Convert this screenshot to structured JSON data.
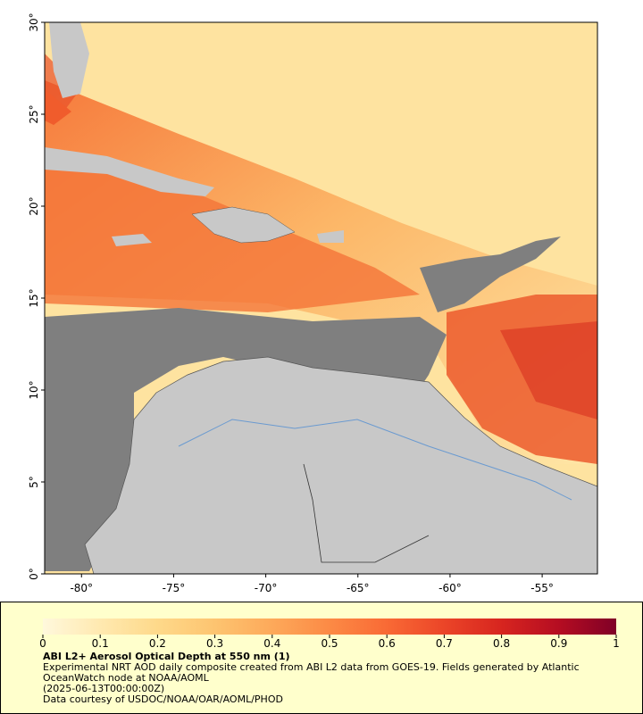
{
  "map": {
    "xlim": [
      -82,
      -52
    ],
    "ylim": [
      0,
      30
    ],
    "xticks": [
      {
        "value": -80,
        "label": "-80°"
      },
      {
        "value": -75,
        "label": "-75°"
      },
      {
        "value": -70,
        "label": "-70°"
      },
      {
        "value": -65,
        "label": "-65°"
      },
      {
        "value": -60,
        "label": "-60°"
      },
      {
        "value": -55,
        "label": "-55°"
      }
    ],
    "yticks": [
      {
        "value": 0,
        "label": "0°"
      },
      {
        "value": 5,
        "label": "5°"
      },
      {
        "value": 10,
        "label": "10°"
      },
      {
        "value": 15,
        "label": "15°"
      },
      {
        "value": 20,
        "label": "20°"
      },
      {
        "value": 25,
        "label": "25°"
      },
      {
        "value": 30,
        "label": "30°"
      }
    ]
  },
  "legend": {
    "clim": [
      0,
      1
    ],
    "ticks": [
      0,
      0.1,
      0.2,
      0.3,
      0.4,
      0.5,
      0.6,
      0.7,
      0.8,
      0.9,
      1
    ],
    "colors": [
      "#fff8dc",
      "#ffe9b0",
      "#fed98a",
      "#fdc470",
      "#fda95a",
      "#fc8a45",
      "#f96a35",
      "#eb4528",
      "#d7251f",
      "#b50d22",
      "#800026"
    ]
  },
  "caption": {
    "title": "ABI L2+ Aerosol Optical Depth at 550 nm (1)",
    "description": "Experimental NRT AOD daily composite created from ABI L2 data from GOES-19. Fields generated by Atlantic OceanWatch node at NOAA/AOML",
    "time": "(2025-06-13T00:00:00Z)",
    "credit": "Data courtesy of USDOC/NOAA/OAR/AOML/PHOD"
  }
}
